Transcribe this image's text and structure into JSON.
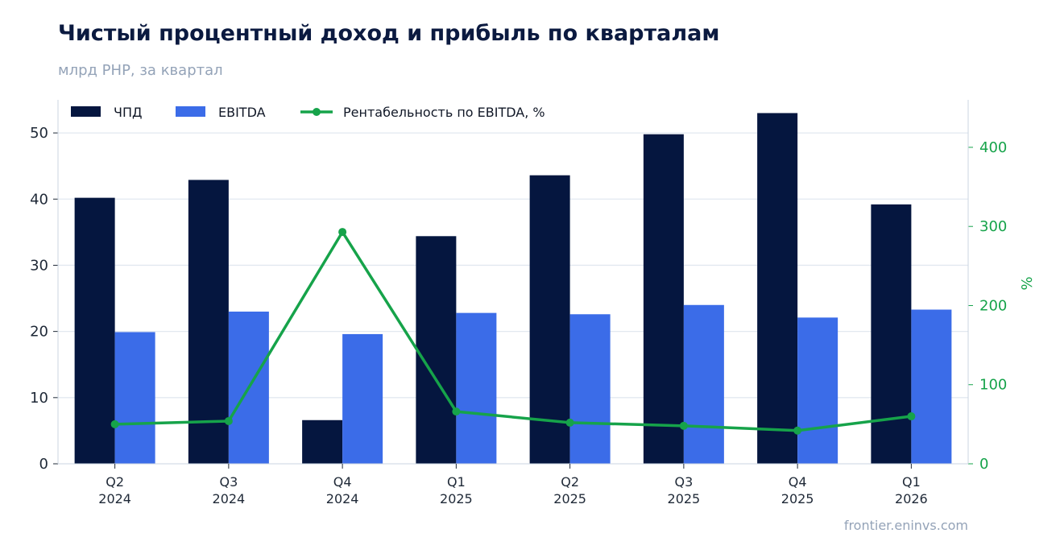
{
  "header": {
    "title": "Чистый процентный доход и прибыль по кварталам",
    "subtitle": "млрд РНР, за квартал"
  },
  "footer": {
    "source": "frontier.eninvs.com"
  },
  "colors": {
    "npd": "#05163f",
    "ebitda": "#3b6ce8",
    "margin": "#16a34a",
    "grid": "#e2e8f0"
  },
  "chart_data": {
    "type": "bar",
    "categories": [
      [
        "Q2",
        "2024"
      ],
      [
        "Q3",
        "2024"
      ],
      [
        "Q4",
        "2024"
      ],
      [
        "Q1",
        "2025"
      ],
      [
        "Q2",
        "2025"
      ],
      [
        "Q3",
        "2025"
      ],
      [
        "Q4",
        "2025"
      ],
      [
        "Q1",
        "2026"
      ]
    ],
    "series": [
      {
        "name": "ЧПД",
        "kind": "bar",
        "axis": "left",
        "values": [
          40.2,
          42.9,
          6.6,
          34.4,
          43.6,
          49.8,
          53.0,
          39.2
        ]
      },
      {
        "name": "EBITDA",
        "kind": "bar",
        "axis": "left",
        "values": [
          19.9,
          23.0,
          19.6,
          22.8,
          22.6,
          24.0,
          22.1,
          23.3
        ]
      },
      {
        "name": "Рентабельность по EBITDA, %",
        "kind": "line",
        "axis": "right",
        "values": [
          50,
          54,
          293,
          66,
          52,
          48,
          42,
          60
        ]
      }
    ],
    "y_left": {
      "min": 0,
      "max": 55,
      "ticks": [
        0,
        10,
        20,
        30,
        40,
        50
      ]
    },
    "y_right": {
      "label": "%",
      "min": 0,
      "max": 460,
      "ticks": [
        0,
        100,
        200,
        300,
        400
      ]
    },
    "grid": true,
    "legend": "top-left"
  }
}
